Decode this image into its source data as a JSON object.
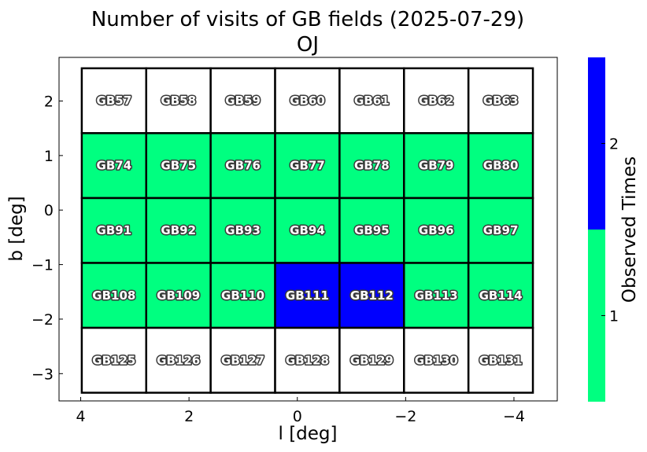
{
  "chart_data": {
    "type": "heatmap",
    "title": "Number of visits of GB fields (2025-07-29)",
    "subtitle": "OJ",
    "xlabel": "l [deg]",
    "ylabel": "b [deg]",
    "xlim": [
      4.4,
      -4.8
    ],
    "ylim": [
      -3.5,
      2.8
    ],
    "x_ticks": [
      {
        "value": 4,
        "label": "4"
      },
      {
        "value": 2,
        "label": "2"
      },
      {
        "value": 0,
        "label": "0"
      },
      {
        "value": -2,
        "label": "−2"
      },
      {
        "value": -4,
        "label": "−4"
      }
    ],
    "y_ticks": [
      {
        "value": 2,
        "label": "2"
      },
      {
        "value": 1,
        "label": "1"
      },
      {
        "value": 0,
        "label": "0"
      },
      {
        "value": -1,
        "label": "−1"
      },
      {
        "value": -2,
        "label": "−2"
      },
      {
        "value": -3,
        "label": "−3"
      }
    ],
    "grid": false,
    "l_edges": [
      3.98,
      2.79,
      1.6,
      0.41,
      -0.78,
      -1.97,
      -3.16,
      -4.35
    ],
    "b_edges": [
      2.6,
      1.41,
      0.22,
      -0.97,
      -2.16,
      -3.35
    ],
    "fields": [
      [
        "GB57",
        "GB58",
        "GB59",
        "GB60",
        "GB61",
        "GB62",
        "GB63"
      ],
      [
        "GB74",
        "GB75",
        "GB76",
        "GB77",
        "GB78",
        "GB79",
        "GB80"
      ],
      [
        "GB91",
        "GB92",
        "GB93",
        "GB94",
        "GB95",
        "GB96",
        "GB97"
      ],
      [
        "GB108",
        "GB109",
        "GB110",
        "GB111",
        "GB112",
        "GB113",
        "GB114"
      ],
      [
        "GB125",
        "GB126",
        "GB127",
        "GB128",
        "GB129",
        "GB130",
        "GB131"
      ]
    ],
    "visits": [
      [
        0,
        0,
        0,
        0,
        0,
        0,
        0
      ],
      [
        1,
        1,
        1,
        1,
        1,
        1,
        1
      ],
      [
        1,
        1,
        1,
        1,
        1,
        1,
        1
      ],
      [
        1,
        1,
        1,
        2,
        2,
        1,
        1
      ],
      [
        0,
        0,
        0,
        0,
        0,
        0,
        0
      ]
    ],
    "colors": {
      "0": "#ffffff",
      "1": "#00ff80",
      "2": "#0000ff"
    },
    "colorbar": {
      "label": "Observed Times",
      "range": [
        0.5,
        2.5
      ],
      "bins": [
        {
          "from": 0.5,
          "to": 1.5,
          "color": "#00ff80"
        },
        {
          "from": 1.5,
          "to": 2.5,
          "color": "#0000ff"
        }
      ],
      "ticks": [
        {
          "value": 1,
          "label": "1"
        },
        {
          "value": 2,
          "label": "2"
        }
      ]
    }
  }
}
